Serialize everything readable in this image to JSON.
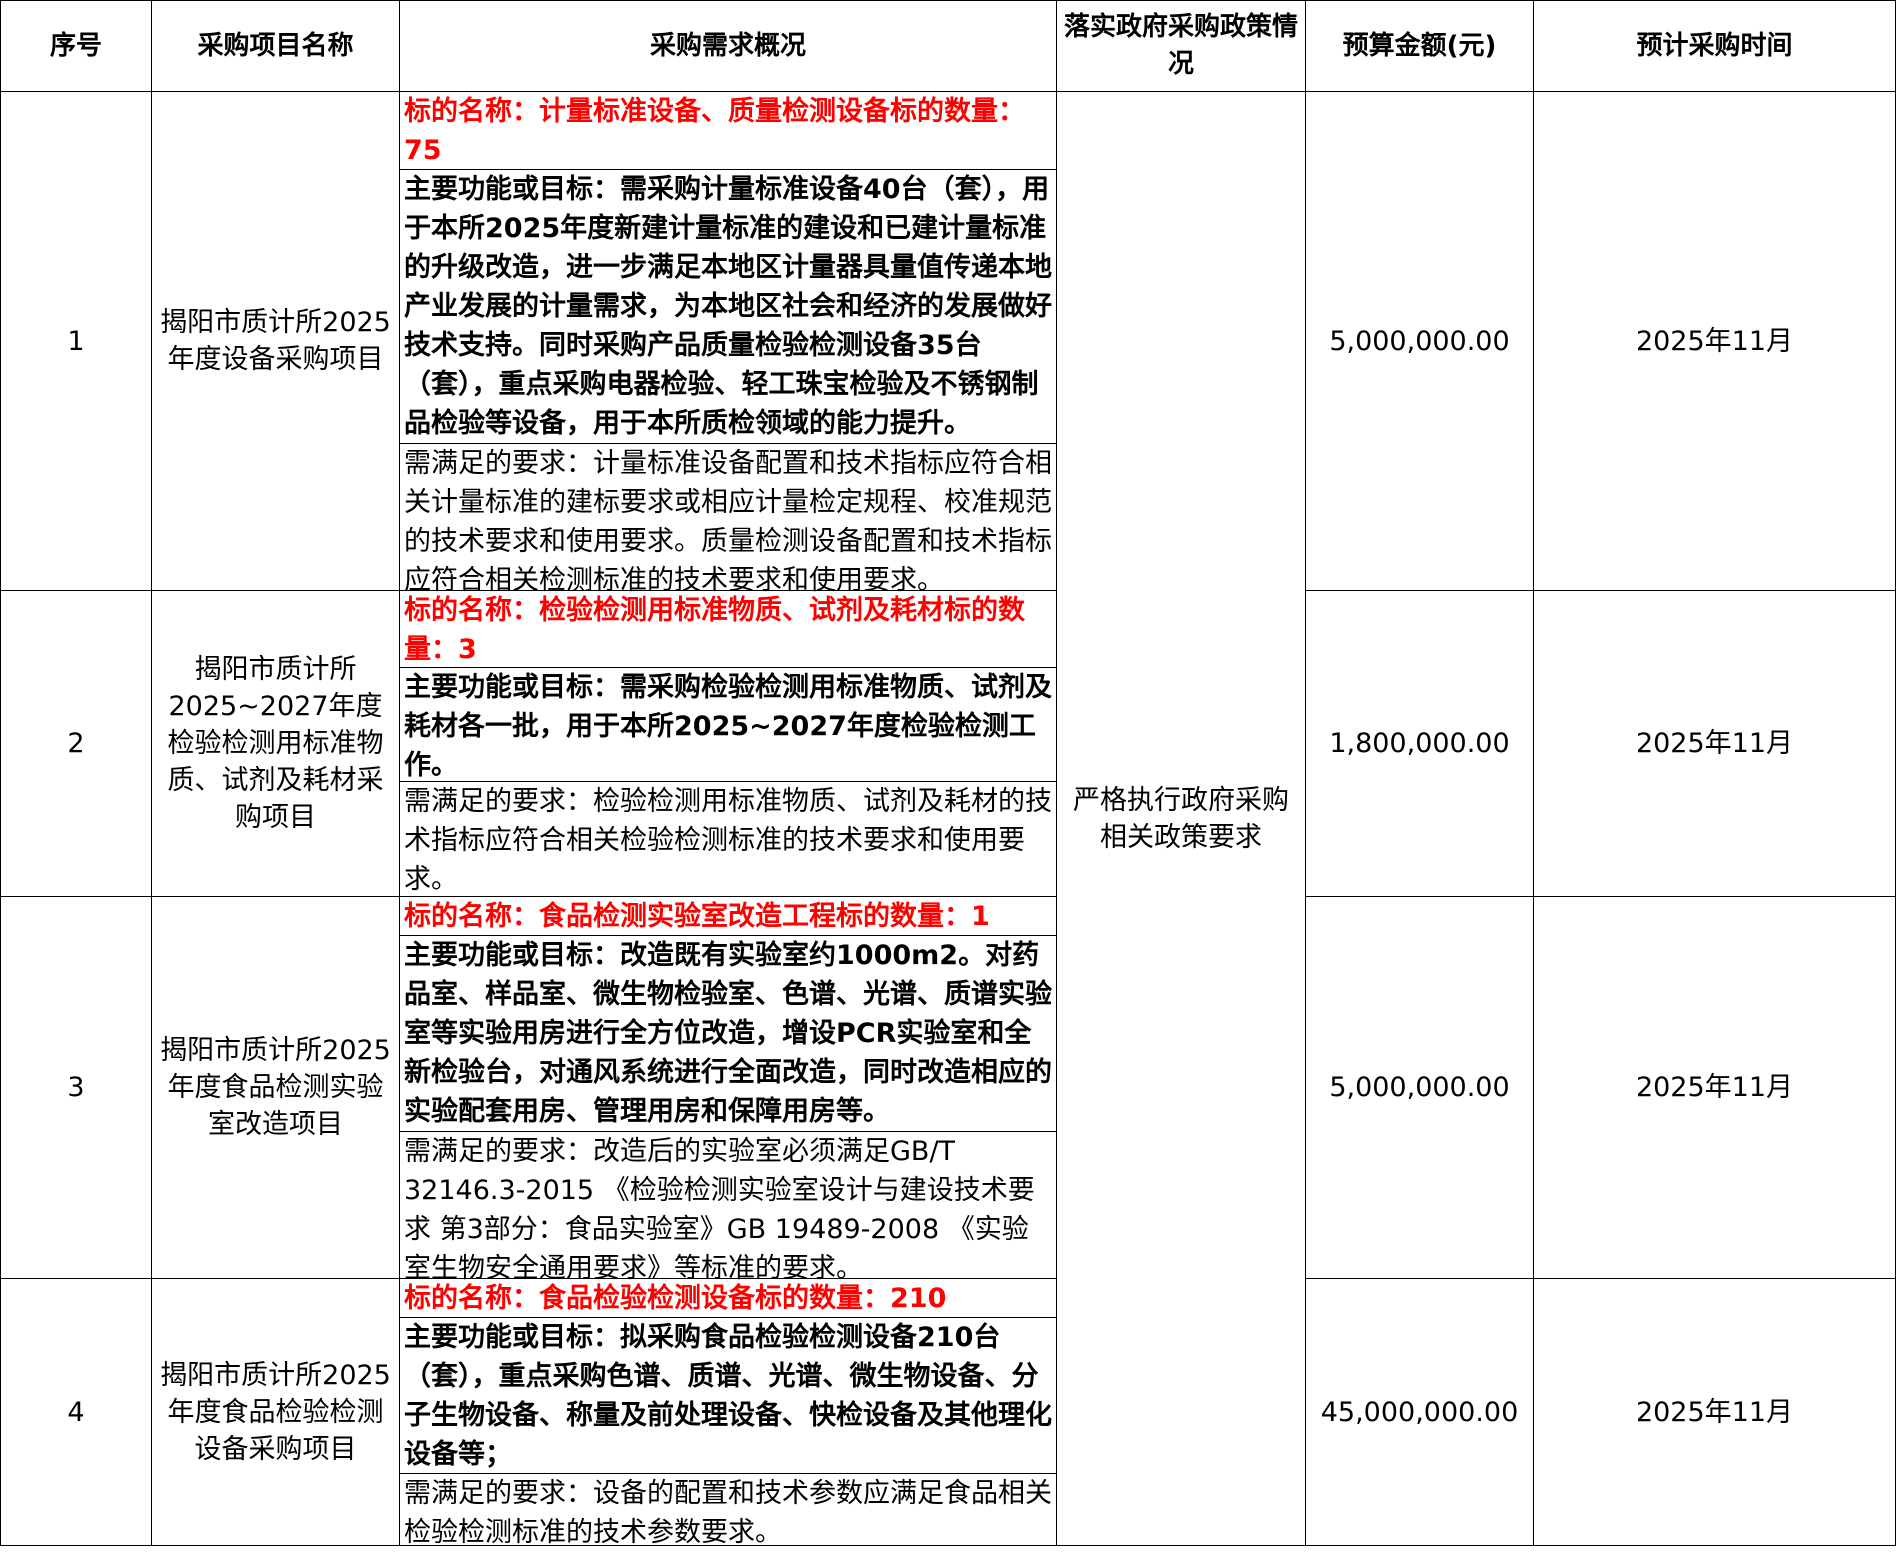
{
  "headers": [
    "序号",
    "采购项目名称",
    "采购需求概况",
    "落实政府采购政策情况",
    "预算金额(元)",
    "预计采购时间"
  ],
  "policy": "严格执行政府采购相关政策要求",
  "rows": [
    {
      "no": "1",
      "name": "揭阳市质计所2025年度设备采购项目",
      "target": "标的名称：计量标准设备、质量检测设备标的数量：75",
      "goal": "主要功能或目标：需采购计量标准设备40台（套），用于本所2025年度新建计量标准的建设和已建计量标准的升级改造，进一步满足本地区计量器具量值传递本地产业发展的计量需求，为本地区社会和经济的发展做好技术支持。同时采购产品质量检验检测设备35台（套），重点采购电器检验、轻工珠宝检验及不锈钢制品检验等设备，用于本所质检领域的能力提升。",
      "req": "需满足的要求：计量标准设备配置和技术指标应符合相关计量标准的建标要求或相应计量检定规程、校准规范的技术要求和使用要求。质量检测设备配置和技术指标应符合相关检测标准的技术要求和使用要求。",
      "budget": "5,000,000.00",
      "time": "2025年11月"
    },
    {
      "no": "2",
      "name": "揭阳市质计所2025~2027年度检验检测用标准物质、试剂及耗材采购项目",
      "target": "标的名称：检验检测用标准物质、试剂及耗材标的数量：3",
      "goal": "主要功能或目标：需采购检验检测用标准物质、试剂及耗材各一批，用于本所2025~2027年度检验检测工作。",
      "req": "需满足的要求：检验检测用标准物质、试剂及耗材的技术指标应符合相关检验检测标准的技术要求和使用要求。",
      "budget": "1,800,000.00",
      "time": "2025年11月"
    },
    {
      "no": "3",
      "name": "揭阳市质计所2025年度食品检测实验室改造项目",
      "target": "标的名称：食品检测实验室改造工程标的数量：1",
      "goal": "主要功能或目标：改造既有实验室约1000m2。对药品室、样品室、微生物检验室、色谱、光谱、质谱实验室等实验用房进行全方位改造，增设PCR实验室和全新检验台，对通风系统进行全面改造，同时改造相应的实验配套用房、管理用房和保障用房等。",
      "req": "需满足的要求：改造后的实验室必须满足GB/T 32146.3-2015 《检验检测实验室设计与建设技术要求 第3部分：食品实验室》GB 19489-2008 《实验室生物安全通用要求》等标准的要求。",
      "budget": "5,000,000.00",
      "time": "2025年11月"
    },
    {
      "no": "4",
      "name": "揭阳市质计所2025年度食品检验检测设备采购项目",
      "target": "标的名称：食品检验检测设备标的数量：210",
      "goal": "主要功能或目标：拟采购食品检验检测设备210台（套），重点采购色谱、质谱、光谱、微生物设备、分子生物设备、称量及前处理设备、快检设备及其他理化设备等；",
      "req": "需满足的要求：设备的配置和技术参数应满足食品相关检验检测标准的技术参数要求。",
      "budget": "45,000,000.00",
      "time": "2025年11月"
    }
  ]
}
